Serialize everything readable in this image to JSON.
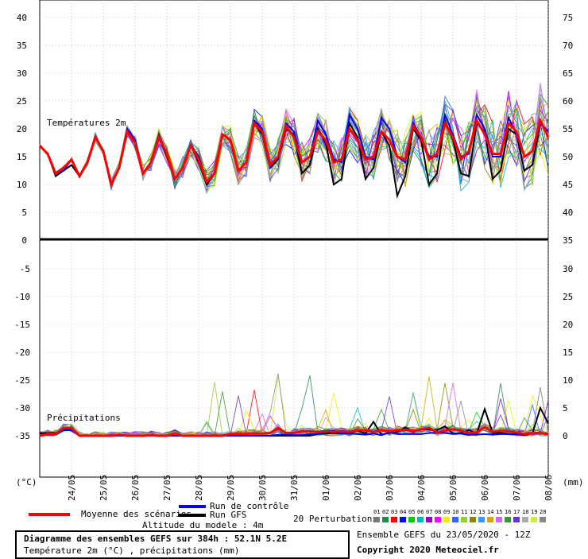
{
  "chart_data": {
    "type": "line",
    "temperature_panel": {
      "label": "Températures 2m",
      "left_ticks": [
        "40",
        "35",
        "30",
        "25",
        "20",
        "15",
        "10",
        "5",
        "0"
      ],
      "right_ticks": [
        "75",
        "70",
        "65",
        "60",
        "55",
        "50",
        "45",
        "40",
        "35"
      ],
      "ylim": [
        0,
        42
      ]
    },
    "precip_panel": {
      "label": "Précipitations",
      "left_ticks": [
        "-5",
        "-10",
        "-15",
        "-20",
        "-25",
        "-30",
        "-35"
      ],
      "right_ticks": [
        "30",
        "25",
        "20",
        "15",
        "10",
        "5",
        "0"
      ],
      "ylim": [
        -1,
        35
      ]
    },
    "left_unit": "(°C)",
    "right_unit": "(mm)",
    "date_ticks": [
      "24/05",
      "25/05",
      "26/05",
      "27/05",
      "28/05",
      "29/05",
      "30/05",
      "31/05",
      "01/06",
      "02/06",
      "03/06",
      "04/06",
      "05/06",
      "06/06",
      "07/06",
      "08/06"
    ],
    "x_range_days": [
      0,
      16
    ],
    "series": [
      {
        "name": "Moyenne des scénarios",
        "color": "#ff0000",
        "temp": [
          17,
          15.5,
          12,
          13,
          14.5,
          11.5,
          14,
          18.5,
          16,
          10,
          13,
          19.5,
          17.5,
          12,
          14,
          18.5,
          15.5,
          11,
          13,
          17,
          14.5,
          10.5,
          12,
          19,
          18,
          12.5,
          14,
          21,
          19.5,
          13.5,
          15,
          20.5,
          18.5,
          14,
          15,
          19.5,
          18,
          14,
          14.5,
          20,
          18,
          14.5,
          15,
          19.5,
          18,
          15,
          14.5,
          20.5,
          18.5,
          14.5,
          15.5,
          21,
          18.5,
          14.5,
          16,
          21.5,
          19,
          15.5,
          15.5,
          21,
          19.5,
          15,
          16,
          21.5,
          18.5
        ],
        "precip": [
          0,
          0.3,
          0.3,
          1.4,
          1.4,
          0,
          0,
          0,
          0,
          0,
          0.2,
          0,
          0,
          0,
          0.1,
          0,
          0,
          0.4,
          0,
          0,
          0,
          0,
          0,
          0,
          0.3,
          0.3,
          0.4,
          0.4,
          0.4,
          0.5,
          1.4,
          0.5,
          0.5,
          0.8,
          0.8,
          0.7,
          0.8,
          0.7,
          0.8,
          0.7,
          1,
          1,
          0.7,
          1,
          0.8,
          1,
          1.1,
          0.9,
          1.1,
          1.4,
          0.6,
          0.9,
          1.2,
          0.9,
          0.5,
          0.6,
          1.5,
          0.7,
          0.9,
          0.8,
          0.6,
          0.3,
          0.5,
          0.5,
          0.3
        ]
      },
      {
        "name": "Run de contrôle",
        "color": "#0000ff",
        "temp": [
          17,
          15.5,
          12,
          12.5,
          14.5,
          11.5,
          14,
          18.5,
          16,
          10,
          13,
          20,
          18,
          12,
          14,
          19,
          15.5,
          11,
          13,
          17,
          15,
          10.5,
          12,
          19,
          18,
          12.5,
          14,
          21.5,
          20,
          13,
          15,
          21,
          19.5,
          14,
          15,
          21.5,
          19,
          14.5,
          14,
          22.5,
          20,
          15,
          14.5,
          22,
          20,
          15,
          14,
          21,
          18.5,
          15,
          15,
          22.5,
          19,
          15,
          15.5,
          22.5,
          20,
          15,
          15,
          22,
          19,
          15,
          16,
          21,
          19.5
        ],
        "precip": [
          0.2,
          0.2,
          0.2,
          1,
          1,
          0,
          0,
          0,
          0,
          0,
          0,
          0,
          0,
          0,
          0,
          0,
          0,
          0,
          0,
          0,
          0,
          0,
          0,
          0,
          0,
          0,
          0,
          0,
          0,
          0,
          0.2,
          0.2,
          0.1,
          0.1,
          0.3,
          0.3,
          0.8,
          0.9,
          0.4,
          0.4,
          0.3,
          0.2,
          0.4,
          0.1,
          0.6,
          0.3,
          0.3,
          0.3,
          0.3,
          0.5,
          0.5,
          0.5,
          0.3,
          0.4,
          0.2,
          0.2,
          0.3,
          0.2,
          0.3,
          0.3,
          0.2,
          0.3,
          0.4,
          0.4,
          0.4
        ]
      },
      {
        "name": "Run GFS",
        "color": "#000000",
        "temp": [
          17,
          15.5,
          11.5,
          12.5,
          13.5,
          11.5,
          14,
          18.5,
          16,
          10,
          13,
          20,
          18,
          12,
          14,
          18.5,
          15,
          11,
          13,
          17,
          14,
          10,
          12,
          19,
          18,
          12.5,
          14,
          21,
          19,
          13,
          14.5,
          20,
          19,
          12,
          13.5,
          20,
          17.5,
          10,
          11,
          21,
          18.5,
          11,
          13,
          19.5,
          17,
          8,
          11.5,
          20,
          18,
          10,
          12,
          21.5,
          18,
          12,
          11.5,
          21,
          19.5,
          11,
          12.5,
          20,
          19,
          12.5,
          13.5,
          21,
          19.5
        ],
        "precip": [
          0.5,
          0.5,
          0.5,
          1.2,
          1.2,
          0,
          0,
          0,
          0,
          0,
          0,
          0,
          0,
          0,
          0,
          0,
          0,
          0,
          0,
          0,
          0,
          0,
          0,
          0,
          0,
          0,
          0,
          0,
          0,
          0,
          0,
          0,
          0,
          0,
          0,
          0.3,
          0.4,
          0.5,
          0.4,
          0.5,
          0.9,
          0.4,
          2.5,
          0.2,
          0.5,
          0.7,
          1.5,
          0.8,
          1.1,
          1.1,
          1,
          1.7,
          0.4,
          0.5,
          1,
          0.4,
          4.8,
          0.5,
          0.5,
          0.3,
          0.3,
          0.1,
          0.4,
          5,
          2.2
        ]
      }
    ],
    "perturbations": {
      "count_label": "20 Perturbations",
      "ids": [
        "01",
        "02",
        "03",
        "04",
        "05",
        "06",
        "07",
        "08",
        "09",
        "10",
        "11",
        "12",
        "13",
        "14",
        "15",
        "16",
        "17",
        "18",
        "19",
        "20"
      ],
      "colors": [
        "#777777",
        "#228844",
        "#ff0000",
        "#0000ff",
        "#00cc00",
        "#00bbbb",
        "#9900cc",
        "#ff00ff",
        "#eeee00",
        "#3366ff",
        "#99cc33",
        "#888800",
        "#3399ff",
        "#ccaa00",
        "#cc66ff",
        "#339933",
        "#6633cc",
        "#aaaaaa",
        "#ccee33",
        "#888888"
      ]
    },
    "legend": {
      "mean_label": "Moyenne des scénarios",
      "control_label": "Run de contrôle",
      "gfs_label": "Run GFS",
      "mean_color": "#ff0000",
      "control_color": "#0000ff",
      "gfs_color": "#000000"
    }
  },
  "footer": {
    "altitude": "Altitude du modele : 4m",
    "title_line1": "Diagramme des ensembles GEFS sur 384h : 52.1N 5.2E",
    "title_line2": "Température 2m (°C) , précipitations (mm)",
    "ensemble_run": "Ensemble GEFS du 23/05/2020 - 12Z",
    "copyright": "Copyright 2020 Meteociel.fr"
  }
}
